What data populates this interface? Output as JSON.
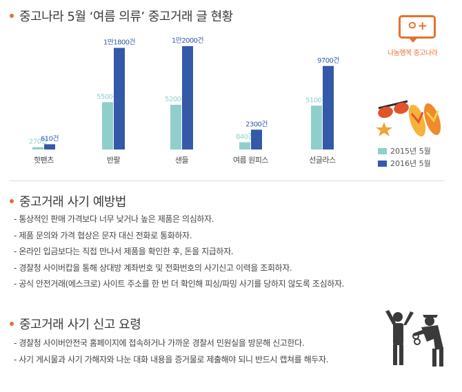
{
  "section1": {
    "title": "중고나라 5월 ‘여름 의류’ 중고거래 글 현황"
  },
  "logo": {
    "mark": "ㅇ+",
    "text": "나눔행복 중고나라"
  },
  "chart_data": {
    "type": "bar",
    "categories": [
      "핫팬츠",
      "반팔",
      "샌들",
      "여름 원피스",
      "선글라스"
    ],
    "series": [
      {
        "name": "2015년 5월",
        "values": [
          270,
          5500,
          5200,
          840,
          5100
        ],
        "labels": [
          "270건",
          "5500건",
          "5200건",
          "840건",
          "5100건"
        ],
        "color": "#8fcfcb"
      },
      {
        "name": "2016년 5월",
        "values": [
          610,
          11800,
          12000,
          2300,
          9700
        ],
        "labels": [
          "610건",
          "1만1800건",
          "1만2000건",
          "2300건",
          "9700건"
        ],
        "color": "#3459a8"
      }
    ],
    "title": "중고나라 5월 ‘여름 의류’ 중고거래 글 현황",
    "legend_position": "right"
  },
  "section2": {
    "title": "중고거래 사기 예방법",
    "items": [
      "- 통상적인 판매 가격보다 너무 낮거나 높은 제품은 의심하자.",
      "- 제품 문의와 가격 협상은 문자 대신 전화로 통화하자.",
      "- 온라인 입금보다는 직접 만나서 제품을 확인한 후, 돈을 지급하자.",
      "- 경찰청 사이버캅을 통해 상대방 계좌번호 및 전화번호의 사기신고 이력을 조회하자.",
      "- 공식 안전거래(에스크로) 사이트 주소를 한 번 더 확인해 피싱/파밍 사기를 당하지 않도록 조심하자."
    ]
  },
  "section3": {
    "title": "중고거래 사기 신고 요령",
    "items": [
      "- 경찰청 사이버안전국 홈페이지에 접속하거나 가까운 경찰서 민원실을 방문해 신고한다.",
      "- 사기 게시물과 사기 가해자와 나눈 대화 내용을 증거물로 제출해야 되니 반드시 캡쳐를 해두자."
    ]
  },
  "colors": {
    "accent": "#e8702a",
    "series2015": "#8fcfcb",
    "series2016": "#3459a8"
  },
  "icons": [
    "sunglasses-icon",
    "flip-flops-icon",
    "starfish-icon",
    "police-arrest-icon"
  ]
}
